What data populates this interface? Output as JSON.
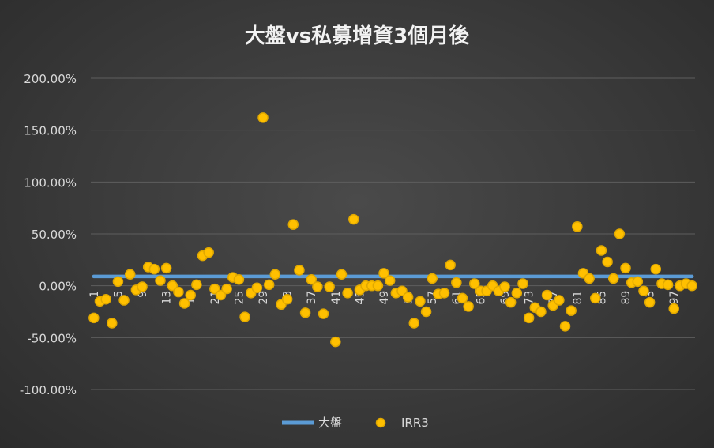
{
  "chart_data": {
    "type": "scatter",
    "title": "大盤vs私募增資3個月後",
    "xlabel": "",
    "ylabel": "",
    "ylim": [
      -100,
      200
    ],
    "y_ticks": [
      -100,
      -50,
      0,
      50,
      100,
      150,
      200
    ],
    "y_tick_labels": [
      "-100.00%",
      "-50.00%",
      "0.00%",
      "50.00%",
      "100.00%",
      "150.00%",
      "200.00%"
    ],
    "x_ticks": [
      1,
      5,
      9,
      13,
      17,
      21,
      25,
      29,
      33,
      37,
      41,
      45,
      49,
      53,
      57,
      61,
      65,
      69,
      73,
      77,
      81,
      85,
      89,
      93,
      97
    ],
    "grid": true,
    "legend_position": "bottom",
    "series": [
      {
        "name": "大盤",
        "kind": "line",
        "color": "#5b9bd5",
        "x": [
          1,
          100
        ],
        "values": [
          9,
          9
        ]
      },
      {
        "name": "IRR3",
        "kind": "scatter",
        "color": "#ffc000",
        "x": [
          1,
          2,
          3,
          4,
          5,
          6,
          7,
          8,
          9,
          10,
          11,
          12,
          13,
          14,
          15,
          16,
          17,
          18,
          19,
          20,
          21,
          22,
          23,
          24,
          25,
          26,
          27,
          28,
          29,
          30,
          31,
          32,
          33,
          34,
          35,
          36,
          37,
          38,
          39,
          40,
          41,
          42,
          43,
          44,
          45,
          46,
          47,
          48,
          49,
          50,
          51,
          52,
          53,
          54,
          55,
          56,
          57,
          58,
          59,
          60,
          61,
          62,
          63,
          64,
          65,
          66,
          67,
          68,
          69,
          70,
          71,
          72,
          73,
          74,
          75,
          76,
          77,
          78,
          79,
          80,
          81,
          82,
          83,
          84,
          85,
          86,
          87,
          88,
          89,
          90,
          91,
          92,
          93,
          94,
          95,
          96,
          97,
          98,
          99,
          100
        ],
        "values": [
          -31,
          -15,
          -13,
          -36,
          4,
          -14,
          11,
          -4,
          -1,
          18,
          16,
          5,
          17,
          0,
          -6,
          -17,
          -9,
          1,
          29,
          32,
          -3,
          -9,
          -3,
          8,
          6,
          -30,
          -7,
          -2,
          162,
          1,
          11,
          -18,
          -13,
          59,
          15,
          -26,
          6,
          -1,
          -27,
          -1,
          -54,
          11,
          -7,
          64,
          -4,
          0,
          0,
          0,
          12,
          5,
          -7,
          -5,
          -11,
          -36,
          -15,
          -25,
          7,
          -8,
          -7,
          20,
          3,
          -12,
          -20,
          2,
          -5,
          -5,
          0,
          -5,
          -1,
          -16,
          -7,
          2,
          -31,
          -21,
          -25,
          -9,
          -19,
          -14,
          -39,
          -24,
          57,
          12,
          7,
          -12,
          34,
          23,
          7,
          50,
          17,
          3,
          4,
          -5,
          -16,
          16,
          2,
          1,
          -22,
          0,
          2,
          0
        ]
      }
    ]
  }
}
